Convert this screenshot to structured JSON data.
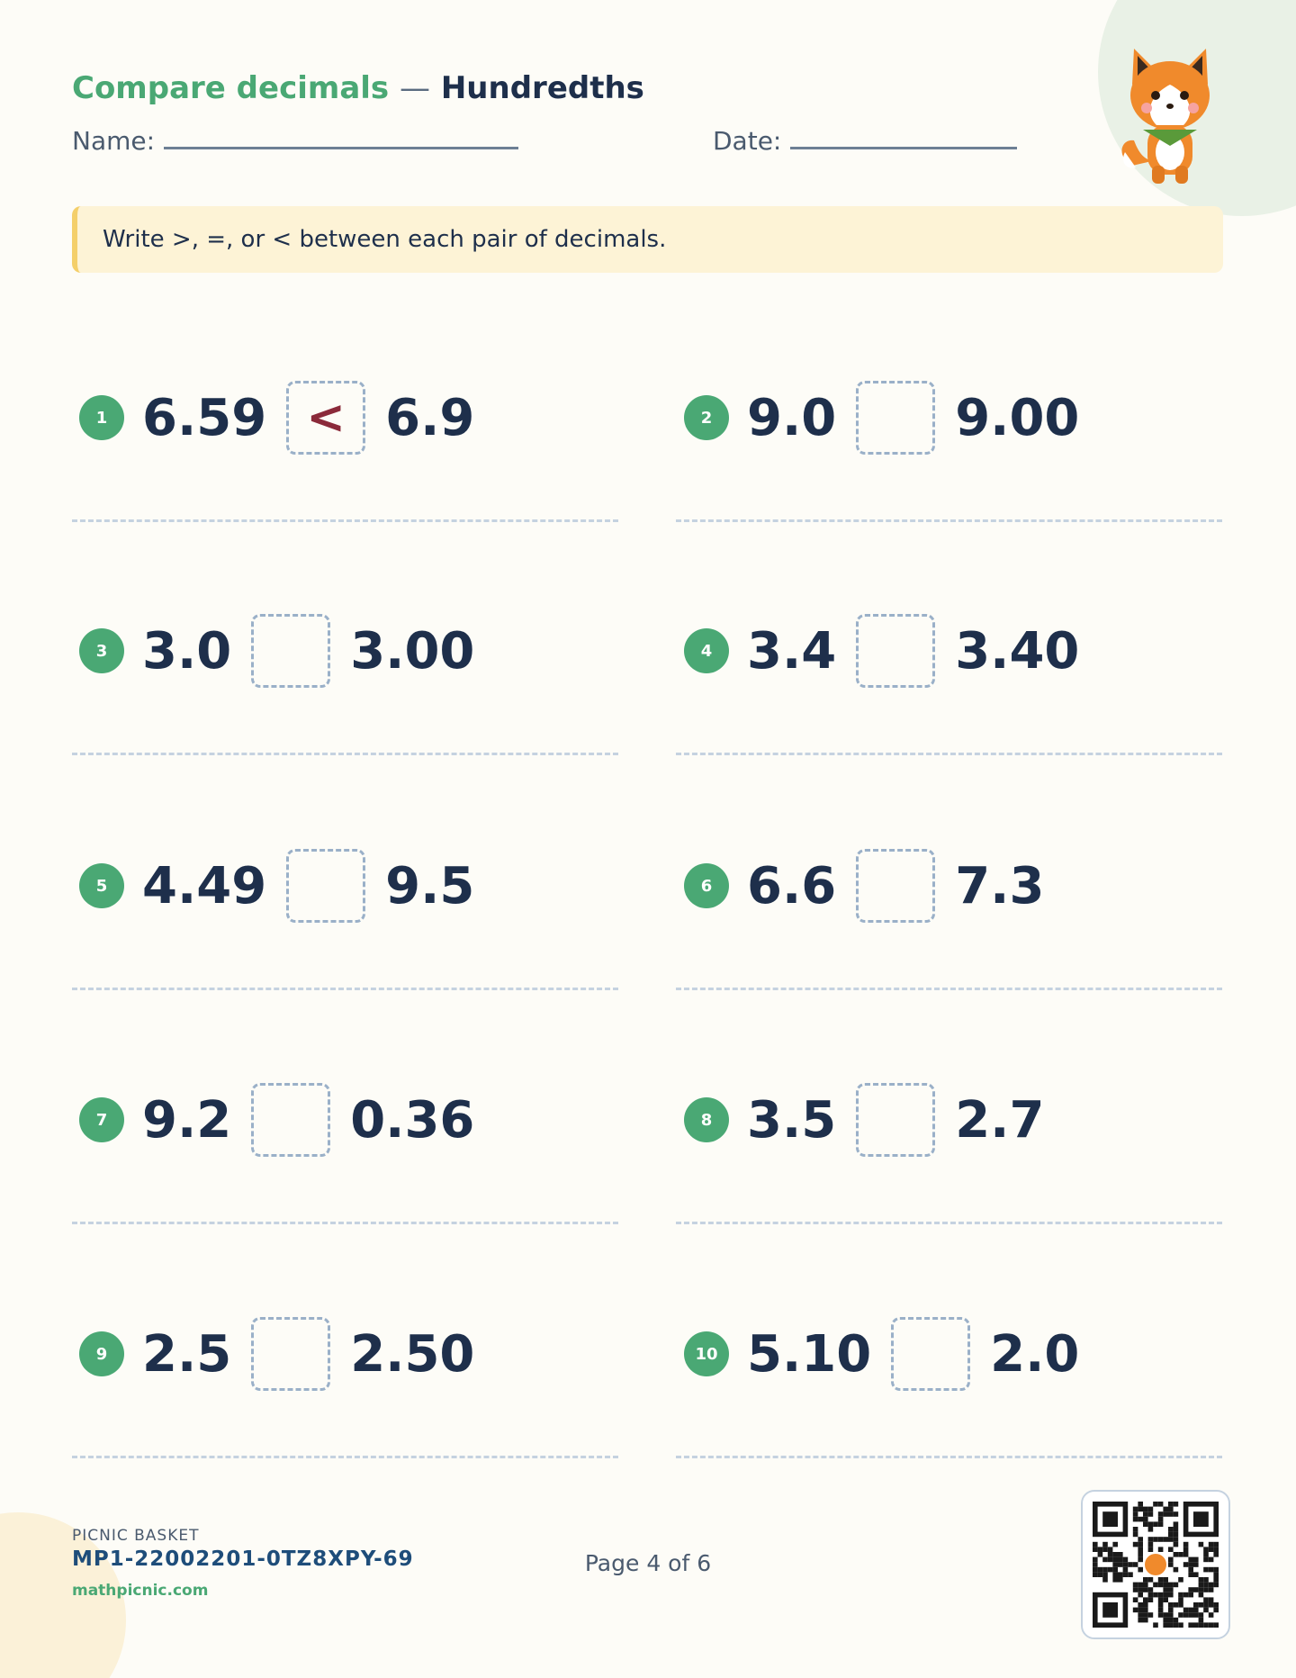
{
  "header": {
    "title": "Compare decimals",
    "separator": "—",
    "subtitle": "Hundredths",
    "name_label": "Name:",
    "date_label": "Date:"
  },
  "instruction": "Write >, =, or < between each pair of decimals.",
  "problems": [
    {
      "number": 1,
      "left": "6.59",
      "answer": "<",
      "right": "6.9"
    },
    {
      "number": 2,
      "left": "9.0",
      "right": "9.00"
    },
    {
      "number": 3,
      "left": "3.0",
      "right": "3.00"
    },
    {
      "number": 4,
      "left": "3.4",
      "right": "3.40"
    },
    {
      "number": 5,
      "left": "4.49",
      "right": "9.5"
    },
    {
      "number": 6,
      "left": "6.6",
      "right": "7.3"
    },
    {
      "number": 7,
      "left": "9.2",
      "right": "0.36"
    },
    {
      "number": 8,
      "left": "3.5",
      "right": "2.7"
    },
    {
      "number": 9,
      "left": "2.5",
      "right": "2.50"
    },
    {
      "number": 10,
      "left": "5.10",
      "right": "2.0"
    }
  ],
  "footer": {
    "brand": "PICNIC BASKET",
    "code": "MP1-22002201-0TZ8XPY-69",
    "site": "mathpicnic.com",
    "page": "Page 4 of 6"
  }
}
